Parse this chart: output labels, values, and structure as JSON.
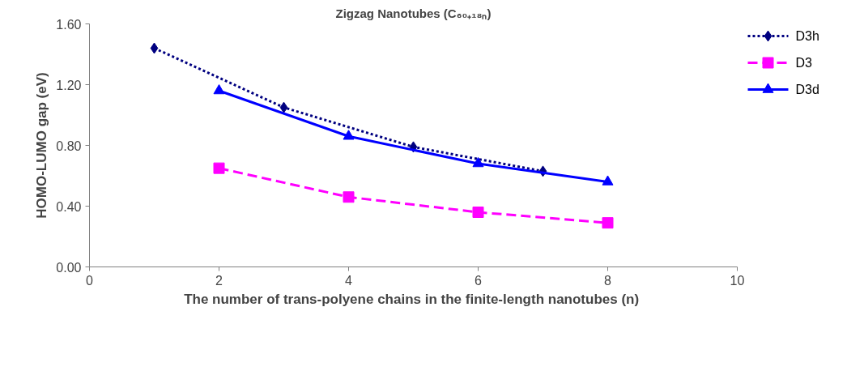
{
  "chart_data": {
    "type": "line",
    "title": "Zigzag Nanotubes (C₆₀₊₁₈ₙ)",
    "xlabel": "The number of  trans-polyene chains in the finite-length nanotubes (n)",
    "ylabel": "HOMO-LUMO gap (eV)",
    "xlim": [
      0,
      10
    ],
    "xticks": [
      0,
      2,
      4,
      6,
      8,
      10
    ],
    "ylim": [
      0,
      1.6
    ],
    "yticks": [
      {
        "value": 0,
        "label": "0.00"
      },
      {
        "value": 0.4,
        "label": "0.40"
      },
      {
        "value": 0.8,
        "label": "0.80"
      },
      {
        "value": 1.2,
        "label": "1.20"
      },
      {
        "value": 1.6,
        "label": "1.60"
      }
    ],
    "grid": false,
    "legend": "top right",
    "series": [
      {
        "name": "D3h",
        "color": "#000080",
        "x": [
          1,
          3,
          5,
          7
        ],
        "values": [
          1.44,
          1.05,
          0.79,
          0.63
        ],
        "marker": "diamond",
        "line_style": "dotted"
      },
      {
        "name": "D3",
        "color": "#ff00ff",
        "x": [
          2,
          4,
          6,
          8
        ],
        "values": [
          0.65,
          0.46,
          0.36,
          0.29
        ],
        "marker": "square",
        "line_style": "dashed"
      },
      {
        "name": "D3d",
        "color": "#0000ff",
        "x": [
          2,
          4,
          6,
          8
        ],
        "values": [
          1.16,
          0.86,
          0.68,
          0.56
        ],
        "marker": "triangle",
        "line_style": "solid"
      }
    ]
  }
}
